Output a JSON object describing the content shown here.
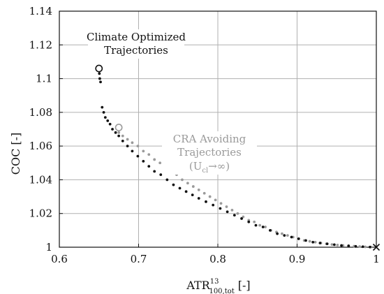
{
  "chart_data": {
    "type": "scatter",
    "xlabel": "ATR",
    "xlabel_sup": "13",
    "xlabel_sub": "100,tot",
    "xlabel_unit": "[-]",
    "ylabel": "COC [-]",
    "xlim": [
      0.6,
      1.0
    ],
    "ylim": [
      1.0,
      1.14
    ],
    "xticks": [
      0.6,
      0.7,
      0.8,
      0.9,
      1.0
    ],
    "xtick_labels": [
      "0.6",
      "0.7",
      "0.8",
      "0.9",
      "1"
    ],
    "yticks": [
      1.0,
      1.02,
      1.04,
      1.06,
      1.08,
      1.1,
      1.12,
      1.14
    ],
    "ytick_labels": [
      "1",
      "1.02",
      "1.04",
      "1.06",
      "1.08",
      "1.1",
      "1.12",
      "1.14"
    ],
    "grid": true,
    "colors": {
      "climate": "#111111",
      "cra": "#9a9a9a",
      "grid": "#b0b0b0"
    },
    "annotations": {
      "climate_line1": "Climate Optimized",
      "climate_line2": "Trajectories",
      "cra_line1": "CRA Avoiding",
      "cra_line2": "Trajectories",
      "cra_line3_a": "(U",
      "cra_line3_sub": "cl",
      "cra_line3_b": "→∞)"
    },
    "series": [
      {
        "marker": "dot",
        "color": "#111111",
        "x": [
          0.6505,
          0.651,
          0.652,
          0.654,
          0.656,
          0.658,
          0.661,
          0.664,
          0.667,
          0.671,
          0.675,
          0.68,
          0.686,
          0.692,
          0.699,
          0.706,
          0.713,
          0.72,
          0.728,
          0.736,
          0.744,
          0.752,
          0.76,
          0.768,
          0.776,
          0.785,
          0.794,
          0.803,
          0.812,
          0.821,
          0.83,
          0.839,
          0.848,
          0.857,
          0.866,
          0.875,
          0.884,
          0.893,
          0.902,
          0.911,
          0.92,
          0.929,
          0.938,
          0.947,
          0.956,
          0.965,
          0.974,
          0.983,
          0.992
        ],
        "y": [
          1.103,
          1.1,
          1.098,
          1.083,
          1.08,
          1.077,
          1.075,
          1.073,
          1.07,
          1.068,
          1.066,
          1.063,
          1.06,
          1.057,
          1.054,
          1.051,
          1.048,
          1.045,
          1.043,
          1.04,
          1.037,
          1.035,
          1.033,
          1.031,
          1.029,
          1.027,
          1.025,
          1.023,
          1.021,
          1.019,
          1.017,
          1.015,
          1.013,
          1.012,
          1.01,
          1.008,
          1.007,
          1.006,
          1.005,
          1.004,
          1.003,
          1.0025,
          1.002,
          1.0015,
          1.001,
          1.0008,
          1.0005,
          1.0003,
          1.0001
        ]
      },
      {
        "marker": "dot",
        "color": "#9a9a9a",
        "x": [
          0.675,
          0.68,
          0.686,
          0.692,
          0.699,
          0.706,
          0.713,
          0.72,
          0.727,
          0.734,
          0.741,
          0.748,
          0.755,
          0.762,
          0.769,
          0.776,
          0.783,
          0.79,
          0.797,
          0.804,
          0.811,
          0.818,
          0.825,
          0.832,
          0.839,
          0.846,
          0.853,
          0.86,
          0.867,
          0.874,
          0.881,
          0.888,
          0.895,
          0.902,
          0.909,
          0.916,
          0.923,
          0.93,
          0.937,
          0.944,
          0.951,
          0.958,
          0.965,
          0.972,
          0.979,
          0.986,
          0.993
        ],
        "y": [
          1.068,
          1.066,
          1.064,
          1.062,
          1.06,
          1.057,
          1.055,
          1.052,
          1.05,
          1.047,
          1.045,
          1.043,
          1.04,
          1.038,
          1.036,
          1.034,
          1.032,
          1.03,
          1.028,
          1.026,
          1.024,
          1.022,
          1.02,
          1.018,
          1.016,
          1.015,
          1.013,
          1.012,
          1.01,
          1.009,
          1.008,
          1.007,
          1.006,
          1.005,
          1.004,
          1.0035,
          1.003,
          1.0025,
          1.002,
          1.0016,
          1.0013,
          1.001,
          1.0008,
          1.0006,
          1.0004,
          1.0002,
          1.0001
        ]
      }
    ],
    "special_points": [
      {
        "marker": "open-circle",
        "color": "#111111",
        "x": 0.65,
        "y": 1.106
      },
      {
        "marker": "open-circle",
        "color": "#9a9a9a",
        "x": 0.675,
        "y": 1.071
      },
      {
        "marker": "cross",
        "color": "#111111",
        "x": 1.0,
        "y": 1.0
      }
    ]
  }
}
